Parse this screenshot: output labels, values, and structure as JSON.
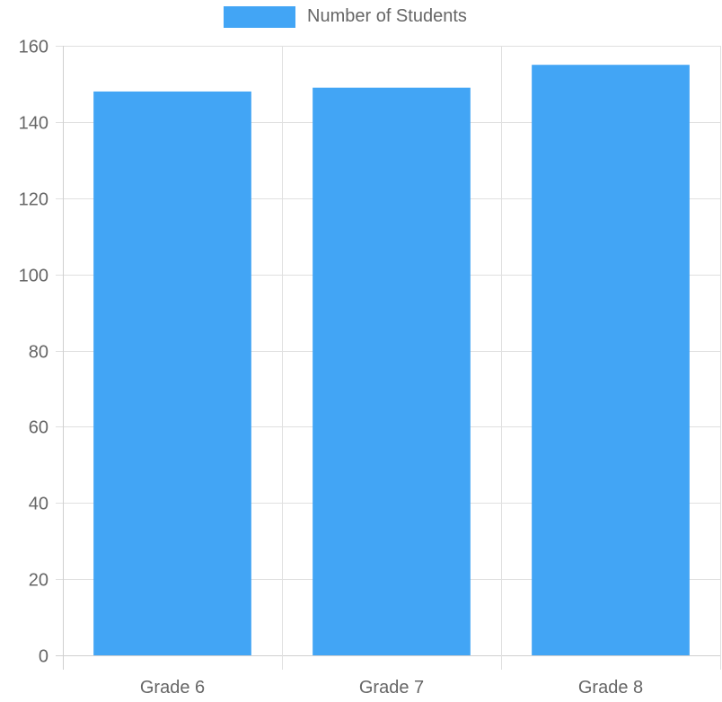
{
  "chart_data": {
    "type": "bar",
    "categories": [
      "Grade 6",
      "Grade 7",
      "Grade 8"
    ],
    "series": [
      {
        "name": "Number of Students",
        "values": [
          148,
          149,
          155
        ],
        "color": "#42a5f5"
      }
    ],
    "title": "",
    "xlabel": "",
    "ylabel": "",
    "ylim": [
      0,
      160
    ],
    "y_ticks": [
      0,
      20,
      40,
      60,
      80,
      100,
      120,
      140,
      160
    ],
    "grid": true,
    "legend_placement": "top-center"
  }
}
